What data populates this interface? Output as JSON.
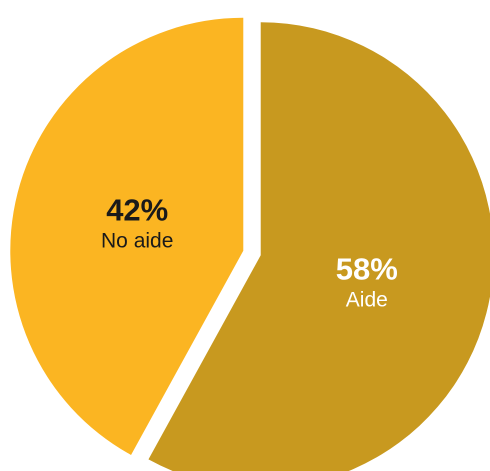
{
  "chart_data": {
    "type": "pie",
    "slices": [
      {
        "label": "Aide",
        "value": 58,
        "value_label": "58%",
        "color": "#c8991f",
        "text_color": "#ffffff"
      },
      {
        "label": "No aide",
        "value": 42,
        "value_label": "42%",
        "color": "#fbb522",
        "text_color": "#1a1a1a"
      }
    ],
    "exploded": true,
    "start": "top",
    "direction": "clockwise"
  }
}
